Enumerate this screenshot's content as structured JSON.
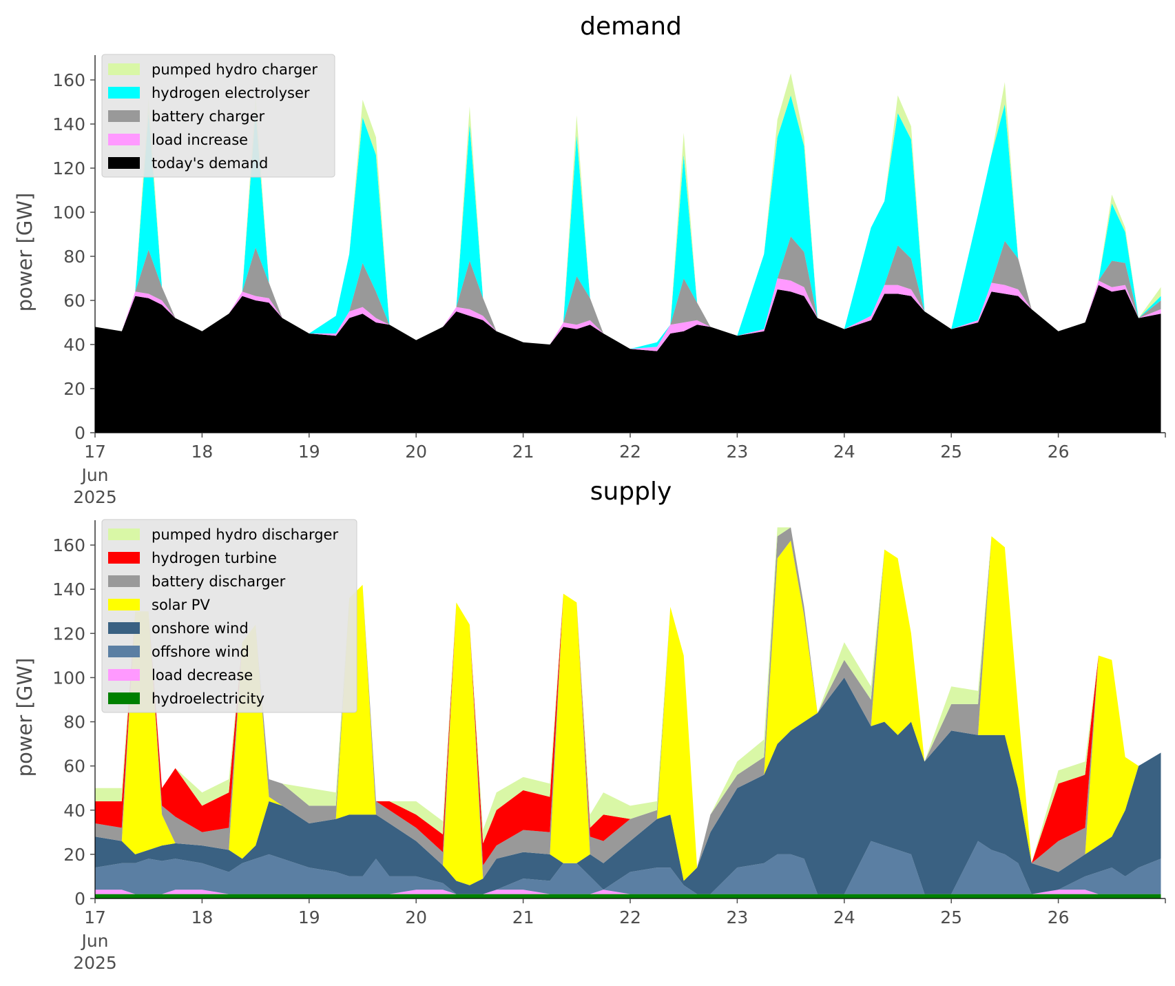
{
  "chart_data": [
    {
      "type": "area",
      "title": "demand",
      "ylabel": "power [GW]",
      "xlabel": "",
      "ylim": [
        0,
        170
      ],
      "xlim": [
        "2025-06-17",
        "2025-06-27"
      ],
      "grid": false,
      "legend_position": "top-left",
      "x_tick_labels": [
        "17",
        "18",
        "19",
        "20",
        "21",
        "22",
        "23",
        "24",
        "25",
        "26"
      ],
      "x_tick_sublabels": [
        "Jun",
        "2025"
      ],
      "y_ticks": [
        0,
        20,
        40,
        60,
        80,
        100,
        120,
        140,
        160
      ],
      "x": [
        "2025-06-17T00:00",
        "2025-06-17T06:00",
        "2025-06-17T09:00",
        "2025-06-17T12:00",
        "2025-06-17T15:00",
        "2025-06-17T18:00",
        "2025-06-18T00:00",
        "2025-06-18T06:00",
        "2025-06-18T09:00",
        "2025-06-18T12:00",
        "2025-06-18T15:00",
        "2025-06-18T18:00",
        "2025-06-19T00:00",
        "2025-06-19T06:00",
        "2025-06-19T09:00",
        "2025-06-19T12:00",
        "2025-06-19T15:00",
        "2025-06-19T18:00",
        "2025-06-20T00:00",
        "2025-06-20T06:00",
        "2025-06-20T09:00",
        "2025-06-20T12:00",
        "2025-06-20T15:00",
        "2025-06-20T18:00",
        "2025-06-21T00:00",
        "2025-06-21T06:00",
        "2025-06-21T09:00",
        "2025-06-21T12:00",
        "2025-06-21T15:00",
        "2025-06-21T18:00",
        "2025-06-22T00:00",
        "2025-06-22T06:00",
        "2025-06-22T09:00",
        "2025-06-22T12:00",
        "2025-06-22T15:00",
        "2025-06-22T18:00",
        "2025-06-23T00:00",
        "2025-06-23T06:00",
        "2025-06-23T09:00",
        "2025-06-23T12:00",
        "2025-06-23T15:00",
        "2025-06-23T18:00",
        "2025-06-24T00:00",
        "2025-06-24T06:00",
        "2025-06-24T09:00",
        "2025-06-24T12:00",
        "2025-06-24T15:00",
        "2025-06-24T18:00",
        "2025-06-25T00:00",
        "2025-06-25T06:00",
        "2025-06-25T09:00",
        "2025-06-25T12:00",
        "2025-06-25T15:00",
        "2025-06-25T18:00",
        "2025-06-26T00:00",
        "2025-06-26T06:00",
        "2025-06-26T09:00",
        "2025-06-26T12:00",
        "2025-06-26T15:00",
        "2025-06-26T18:00",
        "2025-06-26T23:00"
      ],
      "series": [
        {
          "name": "today's demand",
          "color": "#000000",
          "values": [
            48,
            46,
            62,
            61,
            58,
            52,
            46,
            54,
            62,
            60,
            59,
            52,
            45,
            44,
            52,
            54,
            50,
            49,
            42,
            48,
            55,
            53,
            51,
            46,
            41,
            40,
            48,
            47,
            49,
            45,
            38,
            37,
            45,
            46,
            49,
            48,
            44,
            46,
            65,
            64,
            62,
            52,
            47,
            51,
            63,
            63,
            62,
            55,
            47,
            50,
            64,
            63,
            62,
            56,
            46,
            50,
            67,
            64,
            65,
            52,
            54
          ]
        },
        {
          "name": "load increase",
          "color": "#ff99ff",
          "values": [
            0,
            0,
            2,
            2,
            2,
            0,
            0,
            0,
            2,
            2,
            2,
            0,
            0,
            1,
            3,
            3,
            2,
            0,
            0,
            0,
            2,
            3,
            2,
            0,
            0,
            0,
            2,
            2,
            2,
            0,
            0,
            2,
            4,
            4,
            2,
            0,
            0,
            1,
            5,
            5,
            4,
            0,
            0,
            2,
            4,
            4,
            3,
            0,
            0,
            1,
            4,
            4,
            3,
            0,
            0,
            0,
            2,
            2,
            2,
            0,
            2
          ]
        },
        {
          "name": "battery charger",
          "color": "#999999",
          "values": [
            0,
            0,
            0,
            20,
            6,
            0,
            0,
            0,
            0,
            22,
            7,
            0,
            0,
            0,
            0,
            20,
            12,
            0,
            0,
            0,
            0,
            22,
            8,
            0,
            0,
            0,
            0,
            22,
            10,
            0,
            0,
            0,
            0,
            20,
            8,
            0,
            0,
            0,
            0,
            20,
            16,
            0,
            0,
            0,
            0,
            18,
            14,
            0,
            0,
            0,
            0,
            20,
            14,
            0,
            0,
            0,
            0,
            12,
            10,
            0,
            4
          ]
        },
        {
          "name": "hydrogen electrolyser",
          "color": "#00ffff",
          "values": [
            0,
            0,
            0,
            62,
            0,
            0,
            0,
            0,
            0,
            62,
            0,
            0,
            0,
            8,
            26,
            66,
            62,
            0,
            0,
            0,
            0,
            62,
            0,
            0,
            0,
            0,
            0,
            64,
            0,
            0,
            0,
            2,
            0,
            56,
            0,
            0,
            0,
            34,
            64,
            64,
            48,
            0,
            0,
            40,
            38,
            60,
            54,
            0,
            0,
            48,
            58,
            62,
            0,
            0,
            0,
            0,
            0,
            26,
            14,
            0,
            2
          ]
        },
        {
          "name": "pumped hydro charger",
          "color": "#d9f7a6",
          "values": [
            0,
            0,
            0,
            7,
            0,
            0,
            0,
            0,
            0,
            7,
            0,
            0,
            0,
            0,
            0,
            8,
            8,
            0,
            0,
            0,
            0,
            8,
            0,
            0,
            0,
            0,
            0,
            9,
            0,
            0,
            0,
            0,
            0,
            10,
            0,
            0,
            0,
            0,
            8,
            10,
            4,
            0,
            0,
            0,
            0,
            8,
            6,
            0,
            0,
            0,
            0,
            10,
            0,
            0,
            0,
            0,
            0,
            4,
            2,
            0,
            4
          ]
        }
      ]
    },
    {
      "type": "area",
      "title": "supply",
      "ylabel": "power [GW]",
      "xlabel": "",
      "ylim": [
        0,
        170
      ],
      "xlim": [
        "2025-06-17",
        "2025-06-27"
      ],
      "grid": false,
      "legend_position": "top-left",
      "x_tick_labels": [
        "17",
        "18",
        "19",
        "20",
        "21",
        "22",
        "23",
        "24",
        "25",
        "26"
      ],
      "x_tick_sublabels": [
        "Jun",
        "2025"
      ],
      "y_ticks": [
        0,
        20,
        40,
        60,
        80,
        100,
        120,
        140,
        160
      ],
      "x": [
        "2025-06-17T00:00",
        "2025-06-17T06:00",
        "2025-06-17T09:00",
        "2025-06-17T12:00",
        "2025-06-17T15:00",
        "2025-06-17T18:00",
        "2025-06-18T00:00",
        "2025-06-18T06:00",
        "2025-06-18T09:00",
        "2025-06-18T12:00",
        "2025-06-18T15:00",
        "2025-06-18T18:00",
        "2025-06-19T00:00",
        "2025-06-19T06:00",
        "2025-06-19T09:00",
        "2025-06-19T12:00",
        "2025-06-19T15:00",
        "2025-06-19T18:00",
        "2025-06-20T00:00",
        "2025-06-20T06:00",
        "2025-06-20T09:00",
        "2025-06-20T12:00",
        "2025-06-20T15:00",
        "2025-06-20T18:00",
        "2025-06-21T00:00",
        "2025-06-21T06:00",
        "2025-06-21T09:00",
        "2025-06-21T12:00",
        "2025-06-21T15:00",
        "2025-06-21T18:00",
        "2025-06-22T00:00",
        "2025-06-22T06:00",
        "2025-06-22T09:00",
        "2025-06-22T12:00",
        "2025-06-22T15:00",
        "2025-06-22T18:00",
        "2025-06-23T00:00",
        "2025-06-23T06:00",
        "2025-06-23T09:00",
        "2025-06-23T12:00",
        "2025-06-23T15:00",
        "2025-06-23T18:00",
        "2025-06-24T00:00",
        "2025-06-24T06:00",
        "2025-06-24T09:00",
        "2025-06-24T12:00",
        "2025-06-24T15:00",
        "2025-06-24T18:00",
        "2025-06-25T00:00",
        "2025-06-25T06:00",
        "2025-06-25T09:00",
        "2025-06-25T12:00",
        "2025-06-25T15:00",
        "2025-06-25T18:00",
        "2025-06-26T00:00",
        "2025-06-26T06:00",
        "2025-06-26T09:00",
        "2025-06-26T12:00",
        "2025-06-26T15:00",
        "2025-06-26T18:00",
        "2025-06-26T23:00"
      ],
      "series": [
        {
          "name": "hydroelectricity",
          "color": "#008000",
          "values": [
            2,
            2,
            2,
            2,
            2,
            2,
            2,
            2,
            2,
            2,
            2,
            2,
            2,
            2,
            2,
            2,
            2,
            2,
            2,
            2,
            2,
            2,
            2,
            2,
            2,
            2,
            2,
            2,
            2,
            2,
            2,
            2,
            2,
            2,
            2,
            2,
            2,
            2,
            2,
            2,
            2,
            2,
            2,
            2,
            2,
            2,
            2,
            2,
            2,
            2,
            2,
            2,
            2,
            2,
            2,
            2,
            2,
            2,
            2,
            2,
            2
          ]
        },
        {
          "name": "load decrease",
          "color": "#ff99ff",
          "values": [
            2,
            2,
            0,
            0,
            0,
            2,
            2,
            0,
            0,
            0,
            0,
            0,
            0,
            0,
            0,
            0,
            0,
            0,
            2,
            2,
            0,
            0,
            0,
            2,
            2,
            0,
            0,
            0,
            0,
            2,
            0,
            0,
            0,
            0,
            0,
            0,
            0,
            0,
            0,
            0,
            0,
            0,
            0,
            0,
            0,
            0,
            0,
            0,
            0,
            0,
            0,
            0,
            0,
            0,
            2,
            2,
            0,
            0,
            0,
            0,
            0
          ]
        },
        {
          "name": "offshore wind",
          "color": "#5b7fa3",
          "values": [
            10,
            12,
            14,
            16,
            15,
            14,
            12,
            10,
            14,
            16,
            18,
            16,
            12,
            10,
            8,
            8,
            16,
            8,
            6,
            3,
            0,
            0,
            0,
            0,
            5,
            6,
            14,
            14,
            8,
            0,
            10,
            12,
            12,
            4,
            0,
            0,
            12,
            14,
            18,
            18,
            16,
            0,
            0,
            24,
            22,
            20,
            18,
            0,
            0,
            24,
            20,
            18,
            14,
            0,
            0,
            6,
            10,
            12,
            8,
            12,
            16
          ]
        },
        {
          "name": "onshore wind",
          "color": "#3a6182",
          "values": [
            14,
            10,
            4,
            4,
            7,
            7,
            8,
            10,
            2,
            6,
            24,
            24,
            20,
            24,
            28,
            28,
            20,
            24,
            16,
            8,
            6,
            4,
            7,
            14,
            12,
            12,
            0,
            0,
            10,
            12,
            14,
            22,
            24,
            2,
            12,
            28,
            36,
            40,
            50,
            56,
            62,
            82,
            98,
            52,
            56,
            52,
            60,
            60,
            74,
            48,
            52,
            54,
            34,
            14,
            8,
            10,
            12,
            14,
            30,
            46,
            48
          ]
        },
        {
          "name": "solar PV",
          "color": "#ffff00",
          "values": [
            0,
            0,
            110,
            108,
            14,
            0,
            0,
            0,
            98,
            100,
            2,
            0,
            0,
            0,
            98,
            104,
            0,
            0,
            0,
            0,
            126,
            118,
            0,
            0,
            0,
            0,
            122,
            118,
            0,
            0,
            0,
            0,
            94,
            102,
            0,
            0,
            0,
            0,
            84,
            86,
            48,
            0,
            0,
            0,
            78,
            80,
            40,
            0,
            0,
            0,
            90,
            85,
            36,
            0,
            0,
            0,
            86,
            80,
            24,
            0,
            0
          ]
        },
        {
          "name": "battery discharger",
          "color": "#999999",
          "values": [
            6,
            6,
            0,
            0,
            4,
            12,
            6,
            10,
            0,
            0,
            8,
            10,
            8,
            6,
            0,
            0,
            6,
            6,
            6,
            6,
            0,
            0,
            6,
            6,
            10,
            10,
            0,
            0,
            8,
            10,
            10,
            4,
            0,
            0,
            0,
            8,
            6,
            8,
            10,
            6,
            4,
            0,
            8,
            12,
            0,
            0,
            0,
            0,
            12,
            14,
            0,
            0,
            0,
            0,
            14,
            12,
            0,
            0,
            0,
            0,
            0
          ]
        },
        {
          "name": "hydrogen turbine",
          "color": "#ff0000",
          "values": [
            10,
            12,
            0,
            0,
            8,
            22,
            12,
            16,
            0,
            0,
            0,
            0,
            0,
            0,
            0,
            0,
            0,
            4,
            6,
            8,
            0,
            0,
            10,
            16,
            18,
            16,
            0,
            0,
            4,
            12,
            0,
            0,
            0,
            0,
            0,
            0,
            0,
            0,
            0,
            0,
            0,
            0,
            0,
            0,
            0,
            0,
            0,
            0,
            0,
            0,
            0,
            0,
            0,
            0,
            26,
            24,
            0,
            0,
            0,
            0,
            0
          ]
        },
        {
          "name": "pumped hydro discharger",
          "color": "#d9f7a6",
          "values": [
            6,
            6,
            0,
            0,
            0,
            0,
            6,
            6,
            0,
            0,
            0,
            0,
            8,
            6,
            0,
            0,
            0,
            0,
            6,
            6,
            0,
            0,
            6,
            8,
            6,
            6,
            0,
            0,
            6,
            10,
            6,
            4,
            0,
            0,
            0,
            0,
            6,
            8,
            4,
            0,
            0,
            0,
            8,
            6,
            0,
            0,
            0,
            0,
            8,
            6,
            0,
            0,
            0,
            0,
            6,
            6,
            0,
            0,
            0,
            0,
            0
          ]
        }
      ]
    }
  ]
}
